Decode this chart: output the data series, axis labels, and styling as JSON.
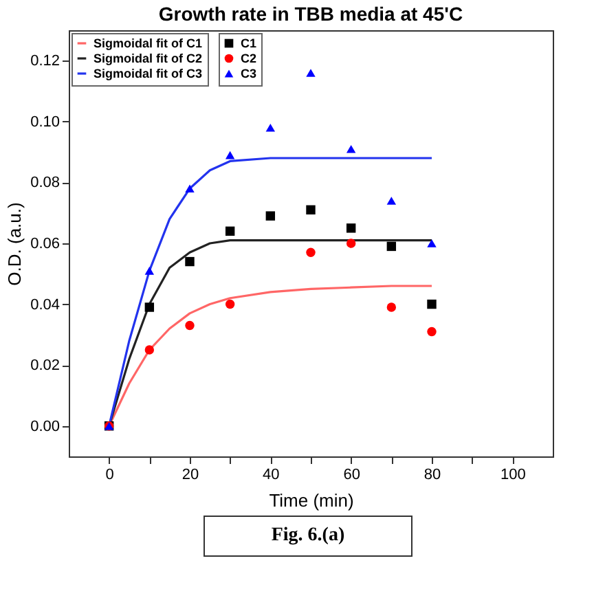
{
  "chart_data": {
    "type": "scatter",
    "title": "Growth rate in TBB media at 45'C",
    "xlabel": "Time (min)",
    "ylabel": "O.D. (a.u.)",
    "annotations": [
      "Fig. 6.(a)"
    ],
    "xlim": [
      -10,
      110
    ],
    "ylim": [
      -0.01,
      0.13
    ],
    "xticks": [
      0,
      {
        "value": 10,
        "label": null
      },
      20,
      {
        "value": 30,
        "label": null
      },
      40,
      {
        "value": 50,
        "label": null
      },
      60,
      {
        "value": 70,
        "label": null
      },
      80,
      {
        "value": 90,
        "label": null
      },
      100
    ],
    "yticks": [
      {
        "value": 0,
        "label": "0.00"
      },
      {
        "value": 0.02,
        "label": "0.02"
      },
      {
        "value": 0.04,
        "label": "0.04"
      },
      {
        "value": 0.06,
        "label": "0.06"
      },
      {
        "value": 0.08,
        "label": "0.08"
      },
      {
        "value": 0.1,
        "label": "0.10"
      },
      {
        "value": 0.12,
        "label": "0.12"
      }
    ],
    "grid": false,
    "legend": "top left",
    "series": [
      {
        "name": "C1",
        "marker": "square",
        "color": "#000000",
        "x": [
          0,
          10,
          20,
          30,
          40,
          50,
          60,
          70,
          80
        ],
        "values": [
          0,
          0.039,
          0.054,
          0.064,
          0.069,
          0.071,
          0.065,
          0.059,
          0.04
        ]
      },
      {
        "name": "C2",
        "marker": "circle",
        "color": "#ff0000",
        "x": [
          0,
          10,
          20,
          30,
          50,
          60,
          70,
          80
        ],
        "values": [
          0,
          0.025,
          0.033,
          0.04,
          0.057,
          0.06,
          0.039,
          0.031
        ]
      },
      {
        "name": "C3",
        "marker": "triangle",
        "color": "#0000ff",
        "x": [
          0,
          10,
          20,
          30,
          40,
          50,
          60,
          70,
          80
        ],
        "values": [
          0,
          0.051,
          0.078,
          0.089,
          0.098,
          0.116,
          0.091,
          0.074,
          0.06
        ]
      },
      {
        "name": "Sigmoidal fit of C1",
        "type": "line",
        "color": "#ff6666",
        "x": [
          0,
          5,
          10,
          15,
          20,
          25,
          30,
          40,
          50,
          60,
          70,
          80
        ],
        "values": [
          0,
          0.014,
          0.025,
          0.032,
          0.037,
          0.04,
          0.042,
          0.044,
          0.045,
          0.0455,
          0.046,
          0.046
        ]
      },
      {
        "name": "Sigmoidal fit of C2",
        "type": "line",
        "color": "#222222",
        "x": [
          0,
          5,
          10,
          15,
          20,
          25,
          30,
          40,
          50,
          60,
          70,
          80
        ],
        "values": [
          0,
          0.022,
          0.04,
          0.052,
          0.057,
          0.06,
          0.061,
          0.061,
          0.061,
          0.061,
          0.061,
          0.061
        ]
      },
      {
        "name": "Sigmoidal fit of C3",
        "type": "line",
        "color": "#2233ee",
        "x": [
          0,
          5,
          10,
          15,
          20,
          25,
          30,
          40,
          50,
          60,
          70,
          80
        ],
        "values": [
          0,
          0.028,
          0.051,
          0.068,
          0.078,
          0.084,
          0.087,
          0.088,
          0.088,
          0.088,
          0.088,
          0.088
        ]
      }
    ]
  }
}
